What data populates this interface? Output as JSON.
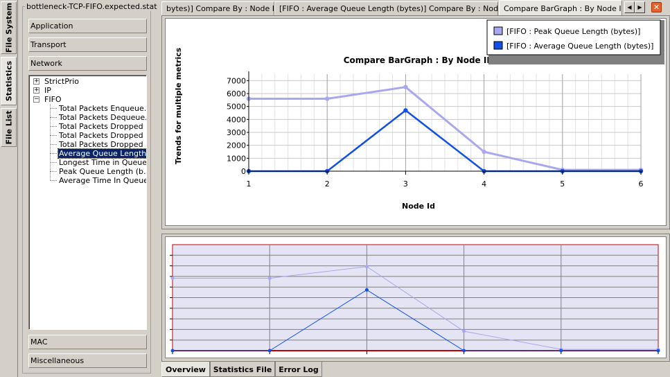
{
  "vertical_tabs": [
    {
      "label": "File System",
      "active": false
    },
    {
      "label": "Statistics",
      "active": true
    },
    {
      "label": "File List",
      "active": false
    }
  ],
  "left_panel": {
    "file_title": "bottleneck-TCP-FIFO.expected.stat",
    "top_categories": [
      "Application",
      "Transport",
      "Network"
    ],
    "bottom_categories": [
      "MAC",
      "Miscellaneous"
    ],
    "tree": {
      "nodes": [
        {
          "label": "StrictPrio",
          "expander": "+"
        },
        {
          "label": "IP",
          "expander": "+"
        },
        {
          "label": "FIFO",
          "expander": "−"
        }
      ],
      "leaves": [
        {
          "label": "Total Packets Enqueue...",
          "selected": false
        },
        {
          "label": "Total Packets Dequeue...",
          "selected": false
        },
        {
          "label": "Total Packets Dropped ...",
          "selected": false
        },
        {
          "label": "Total Packets Dropped ...",
          "selected": false
        },
        {
          "label": "Total Packets Dropped ...",
          "selected": false
        },
        {
          "label": "Average Queue Length ...",
          "selected": true
        },
        {
          "label": "Longest Time in Queue ...",
          "selected": false
        },
        {
          "label": "Peak Queue Length (b...",
          "selected": false
        },
        {
          "label": "Average Time In Queue",
          "selected": false
        }
      ]
    }
  },
  "doc_tabs": [
    {
      "label": "bytes)] Compare By : Node ID",
      "active": false
    },
    {
      "label": "[FIFO :  Average Queue Length (bytes)] Compare By : Node ID",
      "active": false
    },
    {
      "label": "Compare BarGraph : By Node ID",
      "active": true
    }
  ],
  "tab_controls": {
    "left_arrow": "◀",
    "right_arrow": "▶",
    "close": "✕"
  },
  "bottom_tabs": [
    {
      "label": "Overview",
      "active": true
    },
    {
      "label": "Statistics File",
      "active": false
    },
    {
      "label": "Error Log",
      "active": false
    }
  ],
  "chart_data": {
    "type": "line",
    "title": "Compare BarGraph : By Node ID",
    "xlabel": "Node Id",
    "ylabel": "Trends for multiple metrics",
    "x": [
      1,
      2,
      3,
      4,
      5,
      6
    ],
    "x_tick_labels": [
      "1",
      "2",
      "3",
      "4",
      "5",
      "6"
    ],
    "y_tick_labels": [
      "0",
      "1000",
      "2000",
      "3000",
      "4000",
      "5000",
      "6000",
      "7000"
    ],
    "ylim": [
      0,
      7500
    ],
    "grid": true,
    "legend_position": "top-right",
    "series": [
      {
        "name": "[FIFO : Peak Queue Length (bytes)]",
        "color": "#a8a8ee",
        "values": [
          5600,
          5600,
          6500,
          1500,
          100,
          100
        ]
      },
      {
        "name": "[FIFO : Average Queue Length (bytes)]",
        "color": "#1050e8",
        "values": [
          0,
          0,
          4700,
          0,
          0,
          0
        ]
      }
    ],
    "overview": {
      "background": "#e4e4f4",
      "border_color": "#c00000"
    }
  }
}
